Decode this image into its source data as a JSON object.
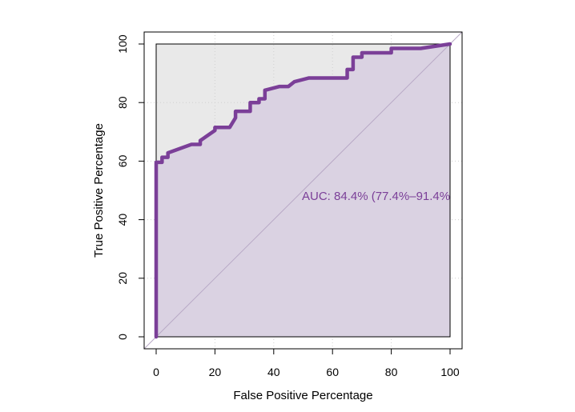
{
  "chart_data": {
    "type": "line",
    "title": "",
    "xlabel": "False Positive Percentage",
    "ylabel": "True Positive Percentage",
    "xlim": [
      0,
      100
    ],
    "ylim": [
      0,
      100
    ],
    "xticks": [
      0,
      20,
      40,
      60,
      80,
      100
    ],
    "yticks": [
      0,
      20,
      40,
      60,
      80,
      100
    ],
    "grid": true,
    "annotation": "AUC: 84.4% (77.4%–91.4%",
    "colors": {
      "curve": "#7b3f98",
      "fill": "#dad2e2",
      "background_region": "#e9e9e9",
      "diagonal": "#b8a9c6",
      "annotation": "#7b3f98"
    },
    "series": [
      {
        "x": [
          0,
          0,
          0,
          2,
          2,
          4,
          4,
          12,
          15,
          15,
          20,
          20,
          25,
          27,
          27,
          32,
          32,
          35,
          35,
          37,
          37,
          42,
          45,
          47,
          52,
          65,
          65,
          67,
          67,
          70,
          70,
          80,
          80,
          90,
          100
        ],
        "y": [
          0,
          58.4,
          59.6,
          59.6,
          61.3,
          61.3,
          62.8,
          65.7,
          65.7,
          67,
          70.5,
          71.5,
          71.5,
          74.8,
          77,
          77,
          80,
          80,
          81.3,
          81.3,
          84.2,
          85.5,
          85.5,
          87.1,
          88.4,
          88.4,
          91.3,
          91.3,
          95.5,
          95.5,
          97,
          97,
          98.5,
          98.5,
          100
        ]
      }
    ]
  }
}
